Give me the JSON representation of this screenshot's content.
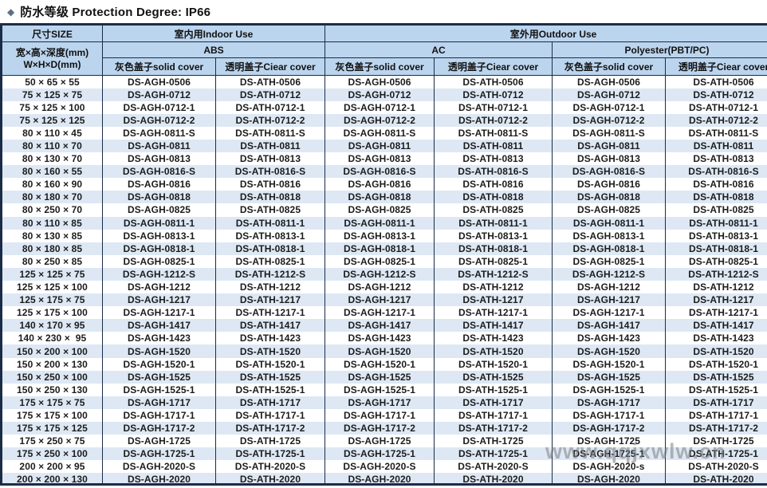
{
  "title": {
    "bullet": "◆",
    "text": "防水等级 Protection Degree: IP66"
  },
  "watermark": "www.qqjxwlw.cn",
  "colors": {
    "header_bg": "#bcd5ee",
    "row_alt": "#dde8f4",
    "border": "#1b2c47",
    "diamond": "#5d7183"
  },
  "table": {
    "header": {
      "size_label": "尺寸SIZE",
      "size_sub_line1": "宽×高×深度(mm)",
      "size_sub_line2": "W×H×D(mm)",
      "indoor_label": "室内用Indoor Use",
      "outdoor_label": "室外用Outdoor Use",
      "materials": [
        "ABS",
        "AC",
        "Polyester(PBT/PC)"
      ],
      "solid_label": "灰色盖子solid cover",
      "clear_label": "透明盖子Ciear cover"
    },
    "rows": [
      {
        "size": "50 × 65 × 55",
        "models": [
          "DS-AGH-0506",
          "DS-ATH-0506",
          "DS-AGH-0506",
          "DS-ATH-0506",
          "DS-AGH-0506",
          "DS-ATH-0506"
        ]
      },
      {
        "size": "75 × 125 × 75",
        "models": [
          "DS-AGH-0712",
          "DS-ATH-0712",
          "DS-AGH-0712",
          "DS-ATH-0712",
          "DS-AGH-0712",
          "DS-ATH-0712"
        ]
      },
      {
        "size": "75 × 125 × 100",
        "models": [
          "DS-AGH-0712-1",
          "DS-ATH-0712-1",
          "DS-AGH-0712-1",
          "DS-ATH-0712-1",
          "DS-AGH-0712-1",
          "DS-ATH-0712-1"
        ]
      },
      {
        "size": "75 × 125 × 125",
        "models": [
          "DS-AGH-0712-2",
          "DS-ATH-0712-2",
          "DS-AGH-0712-2",
          "DS-ATH-0712-2",
          "DS-AGH-0712-2",
          "DS-ATH-0712-2"
        ]
      },
      {
        "size": "80 × 110 × 45",
        "models": [
          "DS-AGH-0811-S",
          "DS-ATH-0811-S",
          "DS-AGH-0811-S",
          "DS-ATH-0811-S",
          "DS-AGH-0811-S",
          "DS-ATH-0811-S"
        ]
      },
      {
        "size": "80 × 110 × 70",
        "models": [
          "DS-AGH-0811",
          "DS-ATH-0811",
          "DS-AGH-0811",
          "DS-ATH-0811",
          "DS-AGH-0811",
          "DS-ATH-0811"
        ]
      },
      {
        "size": "80 × 130 × 70",
        "models": [
          "DS-AGH-0813",
          "DS-ATH-0813",
          "DS-AGH-0813",
          "DS-ATH-0813",
          "DS-AGH-0813",
          "DS-ATH-0813"
        ]
      },
      {
        "size": "80 × 160 × 55",
        "models": [
          "DS-AGH-0816-S",
          "DS-ATH-0816-S",
          "DS-AGH-0816-S",
          "DS-ATH-0816-S",
          "DS-AGH-0816-S",
          "DS-ATH-0816-S"
        ]
      },
      {
        "size": "80 × 160 × 90",
        "models": [
          "DS-AGH-0816",
          "DS-ATH-0816",
          "DS-AGH-0816",
          "DS-ATH-0816",
          "DS-AGH-0816",
          "DS-ATH-0816"
        ]
      },
      {
        "size": "80 × 180 × 70",
        "models": [
          "DS-AGH-0818",
          "DS-ATH-0818",
          "DS-AGH-0818",
          "DS-ATH-0818",
          "DS-AGH-0818",
          "DS-ATH-0818"
        ]
      },
      {
        "size": "80 × 250 × 70",
        "models": [
          "DS-AGH-0825",
          "DS-ATH-0825",
          "DS-AGH-0825",
          "DS-ATH-0825",
          "DS-AGH-0825",
          "DS-ATH-0825"
        ]
      },
      {
        "size": "80 × 110 × 85",
        "models": [
          "DS-AGH-0811-1",
          "DS-ATH-0811-1",
          "DS-AGH-0811-1",
          "DS-ATH-0811-1",
          "DS-AGH-0811-1",
          "DS-ATH-0811-1"
        ]
      },
      {
        "size": "80 × 130 × 85",
        "models": [
          "DS-AGH-0813-1",
          "DS-ATH-0813-1",
          "DS-AGH-0813-1",
          "DS-ATH-0813-1",
          "DS-AGH-0813-1",
          "DS-ATH-0813-1"
        ]
      },
      {
        "size": "80 × 180 × 85",
        "models": [
          "DS-AGH-0818-1",
          "DS-ATH-0818-1",
          "DS-AGH-0818-1",
          "DS-ATH-0818-1",
          "DS-AGH-0818-1",
          "DS-ATH-0818-1"
        ]
      },
      {
        "size": "80 × 250 × 85",
        "models": [
          "DS-AGH-0825-1",
          "DS-ATH-0825-1",
          "DS-AGH-0825-1",
          "DS-ATH-0825-1",
          "DS-AGH-0825-1",
          "DS-ATH-0825-1"
        ]
      },
      {
        "size": "125 × 125 × 75",
        "models": [
          "DS-AGH-1212-S",
          "DS-ATH-1212-S",
          "DS-AGH-1212-S",
          "DS-ATH-1212-S",
          "DS-AGH-1212-S",
          "DS-ATH-1212-S"
        ]
      },
      {
        "size": "125 × 125 × 100",
        "models": [
          "DS-AGH-1212",
          "DS-ATH-1212",
          "DS-AGH-1212",
          "DS-ATH-1212",
          "DS-AGH-1212",
          "DS-ATH-1212"
        ]
      },
      {
        "size": "125 × 175 × 75",
        "models": [
          "DS-AGH-1217",
          "DS-ATH-1217",
          "DS-AGH-1217",
          "DS-ATH-1217",
          "DS-AGH-1217",
          "DS-ATH-1217"
        ]
      },
      {
        "size": "125 × 175 × 100",
        "models": [
          "DS-AGH-1217-1",
          "DS-ATH-1217-1",
          "DS-AGH-1217-1",
          "DS-ATH-1217-1",
          "DS-AGH-1217-1",
          "DS-ATH-1217-1"
        ]
      },
      {
        "size": "140 × 170 × 95",
        "models": [
          "DS-AGH-1417",
          "DS-ATH-1417",
          "DS-AGH-1417",
          "DS-ATH-1417",
          "DS-AGH-1417",
          "DS-ATH-1417"
        ]
      },
      {
        "size": "140 × 230 ×  95",
        "models": [
          "DS-AGH-1423",
          "DS-ATH-1423",
          "DS-AGH-1423",
          "DS-ATH-1423",
          "DS-AGH-1423",
          "DS-ATH-1423"
        ]
      },
      {
        "size": "150 × 200 × 100",
        "models": [
          "DS-AGH-1520",
          "DS-ATH-1520",
          "DS-AGH-1520",
          "DS-ATH-1520",
          "DS-AGH-1520",
          "DS-ATH-1520"
        ]
      },
      {
        "size": "150 × 200 × 130",
        "models": [
          "DS-AGH-1520-1",
          "DS-ATH-1520-1",
          "DS-AGH-1520-1",
          "DS-ATH-1520-1",
          "DS-AGH-1520-1",
          "DS-ATH-1520-1"
        ]
      },
      {
        "size": "150 × 250 × 100",
        "models": [
          "DS-AGH-1525",
          "DS-ATH-1525",
          "DS-AGH-1525",
          "DS-ATH-1525",
          "DS-AGH-1525",
          "DS-ATH-1525"
        ]
      },
      {
        "size": "150 × 250 × 130",
        "models": [
          "DS-AGH-1525-1",
          "DS-ATH-1525-1",
          "DS-AGH-1525-1",
          "DS-ATH-1525-1",
          "DS-AGH-1525-1",
          "DS-ATH-1525-1"
        ]
      },
      {
        "size": "175 × 175 × 75",
        "models": [
          "DS-AGH-1717",
          "DS-ATH-1717",
          "DS-AGH-1717",
          "DS-ATH-1717",
          "DS-AGH-1717",
          "DS-ATH-1717"
        ]
      },
      {
        "size": "175 × 175 × 100",
        "models": [
          "DS-AGH-1717-1",
          "DS-ATH-1717-1",
          "DS-AGH-1717-1",
          "DS-ATH-1717-1",
          "DS-AGH-1717-1",
          "DS-ATH-1717-1"
        ]
      },
      {
        "size": "175 × 175 × 125",
        "models": [
          "DS-AGH-1717-2",
          "DS-ATH-1717-2",
          "DS-AGH-1717-2",
          "DS-ATH-1717-2",
          "DS-AGH-1717-2",
          "DS-ATH-1717-2"
        ]
      },
      {
        "size": "175 × 250 × 75",
        "models": [
          "DS-AGH-1725",
          "DS-ATH-1725",
          "DS-AGH-1725",
          "DS-ATH-1725",
          "DS-AGH-1725",
          "DS-ATH-1725"
        ]
      },
      {
        "size": "175 × 250 × 100",
        "models": [
          "DS-AGH-1725-1",
          "DS-ATH-1725-1",
          "DS-AGH-1725-1",
          "DS-ATH-1725-1",
          "DS-AGH-1725-1",
          "DS-ATH-1725-1"
        ]
      },
      {
        "size": "200 × 200 × 95",
        "models": [
          "DS-AGH-2020-S",
          "DS-ATH-2020-S",
          "DS-AGH-2020-S",
          "DS-ATH-2020-S",
          "DS-AGH-2020-s",
          "DS-ATH-2020-S"
        ]
      },
      {
        "size": "200 × 200 × 130",
        "models": [
          "DS-AGH-2020",
          "DS-ATH-2020",
          "DS-AGH-2020",
          "DS-ATH-2020",
          "DS-AGH-2020",
          "DS-ATH-2020"
        ]
      }
    ]
  }
}
